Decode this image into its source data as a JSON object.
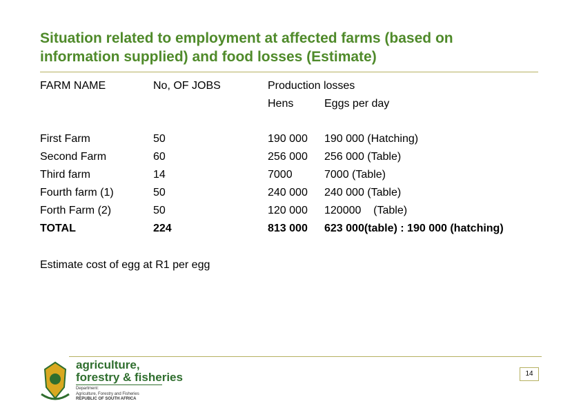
{
  "title_lines": [
    "Situation related to employment at affected farms (based on",
    "information supplied) and food losses (Estimate)"
  ],
  "table": {
    "headers": {
      "farm": "FARM NAME",
      "jobs": "No, OF JOBS",
      "losses": "Production losses",
      "hens": "Hens",
      "eggs": "Eggs per day"
    },
    "rows": [
      [
        "First Farm",
        "50",
        "190 000",
        "190 000 (Hatching)"
      ],
      [
        "Second Farm",
        "60",
        "256 000",
        "256 000 (Table)"
      ],
      [
        "Third farm",
        "14",
        "7000",
        "7000 (Table)"
      ],
      [
        "Fourth farm (1)",
        "50",
        "240 000",
        "240 000 (Table)"
      ],
      [
        "Forth Farm (2)",
        "50",
        "120 000",
        "120000    (Table)"
      ],
      [
        "TOTAL",
        "224",
        "813 000",
        "623 000(table) : 190 000 (hatching)"
      ]
    ]
  },
  "note": "Estimate cost of egg at R1 per egg",
  "footer": {
    "logo_line1": "agriculture,",
    "logo_line2": "forestry & fisheries",
    "dept_label": "Department:",
    "dept_name": "Agriculture, Forestry and Fisheries",
    "country": "REPUBLIC OF SOUTH AFRICA",
    "page": "14"
  }
}
